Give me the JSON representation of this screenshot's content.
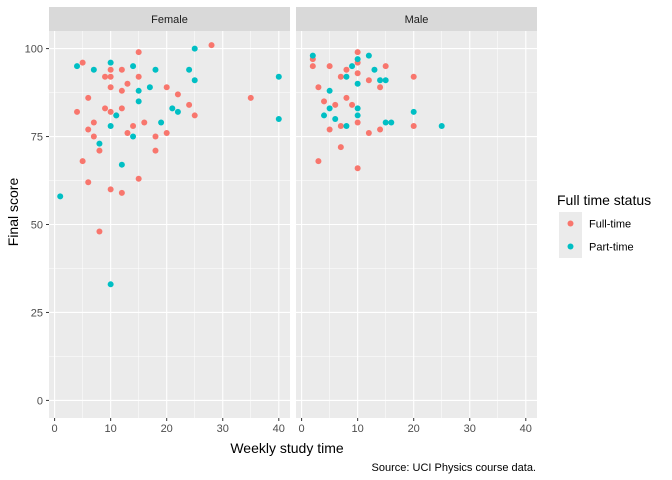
{
  "chart_data": {
    "type": "scatter",
    "facet_by": "sex",
    "facets": [
      "Female",
      "Male"
    ],
    "xlabel": "Weekly study time",
    "ylabel": "Final score",
    "caption": "Source: UCI Physics course data.",
    "xlim": [
      -1,
      42
    ],
    "ylim": [
      -5,
      105
    ],
    "x_ticks": [
      0,
      10,
      20,
      30,
      40
    ],
    "y_ticks": [
      0,
      25,
      50,
      75,
      100
    ],
    "grid": true,
    "legend": {
      "title": "Full time status",
      "position": "right",
      "entries": [
        {
          "name": "Full-time",
          "color": "#F8766D"
        },
        {
          "name": "Part-time",
          "color": "#00BFC4"
        }
      ]
    },
    "series": [
      {
        "name": "Full-time",
        "color": "#F8766D",
        "points": [
          {
            "facet": "Female",
            "x": 4,
            "y": 82
          },
          {
            "facet": "Female",
            "x": 5,
            "y": 96
          },
          {
            "facet": "Female",
            "x": 5,
            "y": 68
          },
          {
            "facet": "Female",
            "x": 6,
            "y": 86
          },
          {
            "facet": "Female",
            "x": 6,
            "y": 77
          },
          {
            "facet": "Female",
            "x": 6,
            "y": 62
          },
          {
            "facet": "Female",
            "x": 7,
            "y": 75
          },
          {
            "facet": "Female",
            "x": 7,
            "y": 79
          },
          {
            "facet": "Female",
            "x": 8,
            "y": 71
          },
          {
            "facet": "Female",
            "x": 8,
            "y": 48
          },
          {
            "facet": "Female",
            "x": 9,
            "y": 92
          },
          {
            "facet": "Female",
            "x": 9,
            "y": 83
          },
          {
            "facet": "Female",
            "x": 10,
            "y": 94
          },
          {
            "facet": "Female",
            "x": 10,
            "y": 92
          },
          {
            "facet": "Female",
            "x": 10,
            "y": 89
          },
          {
            "facet": "Female",
            "x": 10,
            "y": 82
          },
          {
            "facet": "Female",
            "x": 10,
            "y": 60
          },
          {
            "facet": "Female",
            "x": 11,
            "y": 81
          },
          {
            "facet": "Female",
            "x": 12,
            "y": 94
          },
          {
            "facet": "Female",
            "x": 12,
            "y": 88
          },
          {
            "facet": "Female",
            "x": 12,
            "y": 83
          },
          {
            "facet": "Female",
            "x": 12,
            "y": 59
          },
          {
            "facet": "Female",
            "x": 13,
            "y": 90
          },
          {
            "facet": "Female",
            "x": 13,
            "y": 76
          },
          {
            "facet": "Female",
            "x": 14,
            "y": 78
          },
          {
            "facet": "Female",
            "x": 15,
            "y": 99
          },
          {
            "facet": "Female",
            "x": 15,
            "y": 92
          },
          {
            "facet": "Female",
            "x": 15,
            "y": 63
          },
          {
            "facet": "Female",
            "x": 16,
            "y": 79
          },
          {
            "facet": "Female",
            "x": 18,
            "y": 75
          },
          {
            "facet": "Female",
            "x": 18,
            "y": 71
          },
          {
            "facet": "Female",
            "x": 20,
            "y": 89
          },
          {
            "facet": "Female",
            "x": 20,
            "y": 76
          },
          {
            "facet": "Female",
            "x": 22,
            "y": 87
          },
          {
            "facet": "Female",
            "x": 24,
            "y": 84
          },
          {
            "facet": "Female",
            "x": 25,
            "y": 81
          },
          {
            "facet": "Female",
            "x": 28,
            "y": 101
          },
          {
            "facet": "Female",
            "x": 35,
            "y": 86
          },
          {
            "facet": "Male",
            "x": 2,
            "y": 97
          },
          {
            "facet": "Male",
            "x": 2,
            "y": 95
          },
          {
            "facet": "Male",
            "x": 3,
            "y": 89
          },
          {
            "facet": "Male",
            "x": 3,
            "y": 68
          },
          {
            "facet": "Male",
            "x": 4,
            "y": 85
          },
          {
            "facet": "Male",
            "x": 5,
            "y": 77
          },
          {
            "facet": "Male",
            "x": 5,
            "y": 95
          },
          {
            "facet": "Male",
            "x": 6,
            "y": 84
          },
          {
            "facet": "Male",
            "x": 7,
            "y": 92
          },
          {
            "facet": "Male",
            "x": 7,
            "y": 78
          },
          {
            "facet": "Male",
            "x": 7,
            "y": 72
          },
          {
            "facet": "Male",
            "x": 8,
            "y": 94
          },
          {
            "facet": "Male",
            "x": 8,
            "y": 86
          },
          {
            "facet": "Male",
            "x": 9,
            "y": 84
          },
          {
            "facet": "Male",
            "x": 10,
            "y": 99
          },
          {
            "facet": "Male",
            "x": 10,
            "y": 96
          },
          {
            "facet": "Male",
            "x": 10,
            "y": 93
          },
          {
            "facet": "Male",
            "x": 10,
            "y": 79
          },
          {
            "facet": "Male",
            "x": 10,
            "y": 66
          },
          {
            "facet": "Male",
            "x": 12,
            "y": 91
          },
          {
            "facet": "Male",
            "x": 12,
            "y": 76
          },
          {
            "facet": "Male",
            "x": 14,
            "y": 89
          },
          {
            "facet": "Male",
            "x": 14,
            "y": 77
          },
          {
            "facet": "Male",
            "x": 15,
            "y": 95
          },
          {
            "facet": "Male",
            "x": 20,
            "y": 92
          },
          {
            "facet": "Male",
            "x": 20,
            "y": 78
          }
        ]
      },
      {
        "name": "Part-time",
        "color": "#00BFC4",
        "points": [
          {
            "facet": "Female",
            "x": 1,
            "y": 58
          },
          {
            "facet": "Female",
            "x": 4,
            "y": 95
          },
          {
            "facet": "Female",
            "x": 7,
            "y": 94
          },
          {
            "facet": "Female",
            "x": 8,
            "y": 73
          },
          {
            "facet": "Female",
            "x": 10,
            "y": 96
          },
          {
            "facet": "Female",
            "x": 10,
            "y": 78
          },
          {
            "facet": "Female",
            "x": 10,
            "y": 33
          },
          {
            "facet": "Female",
            "x": 11,
            "y": 81
          },
          {
            "facet": "Female",
            "x": 12,
            "y": 67
          },
          {
            "facet": "Female",
            "x": 14,
            "y": 95
          },
          {
            "facet": "Female",
            "x": 14,
            "y": 75
          },
          {
            "facet": "Female",
            "x": 15,
            "y": 88
          },
          {
            "facet": "Female",
            "x": 15,
            "y": 85
          },
          {
            "facet": "Female",
            "x": 17,
            "y": 89
          },
          {
            "facet": "Female",
            "x": 18,
            "y": 94
          },
          {
            "facet": "Female",
            "x": 19,
            "y": 79
          },
          {
            "facet": "Female",
            "x": 21,
            "y": 83
          },
          {
            "facet": "Female",
            "x": 22,
            "y": 82
          },
          {
            "facet": "Female",
            "x": 24,
            "y": 94
          },
          {
            "facet": "Female",
            "x": 25,
            "y": 100
          },
          {
            "facet": "Female",
            "x": 25,
            "y": 91
          },
          {
            "facet": "Female",
            "x": 40,
            "y": 92
          },
          {
            "facet": "Female",
            "x": 40,
            "y": 80
          },
          {
            "facet": "Male",
            "x": 2,
            "y": 98
          },
          {
            "facet": "Male",
            "x": 4,
            "y": 81
          },
          {
            "facet": "Male",
            "x": 5,
            "y": 88
          },
          {
            "facet": "Male",
            "x": 5,
            "y": 83
          },
          {
            "facet": "Male",
            "x": 6,
            "y": 80
          },
          {
            "facet": "Male",
            "x": 8,
            "y": 78
          },
          {
            "facet": "Male",
            "x": 8,
            "y": 92
          },
          {
            "facet": "Male",
            "x": 9,
            "y": 95
          },
          {
            "facet": "Male",
            "x": 10,
            "y": 97
          },
          {
            "facet": "Male",
            "x": 10,
            "y": 90
          },
          {
            "facet": "Male",
            "x": 10,
            "y": 83
          },
          {
            "facet": "Male",
            "x": 10,
            "y": 81
          },
          {
            "facet": "Male",
            "x": 12,
            "y": 98
          },
          {
            "facet": "Male",
            "x": 13,
            "y": 94
          },
          {
            "facet": "Male",
            "x": 14,
            "y": 91
          },
          {
            "facet": "Male",
            "x": 15,
            "y": 91
          },
          {
            "facet": "Male",
            "x": 15,
            "y": 79
          },
          {
            "facet": "Male",
            "x": 16,
            "y": 79
          },
          {
            "facet": "Male",
            "x": 20,
            "y": 82
          },
          {
            "facet": "Male",
            "x": 25,
            "y": 78
          }
        ]
      }
    ]
  }
}
